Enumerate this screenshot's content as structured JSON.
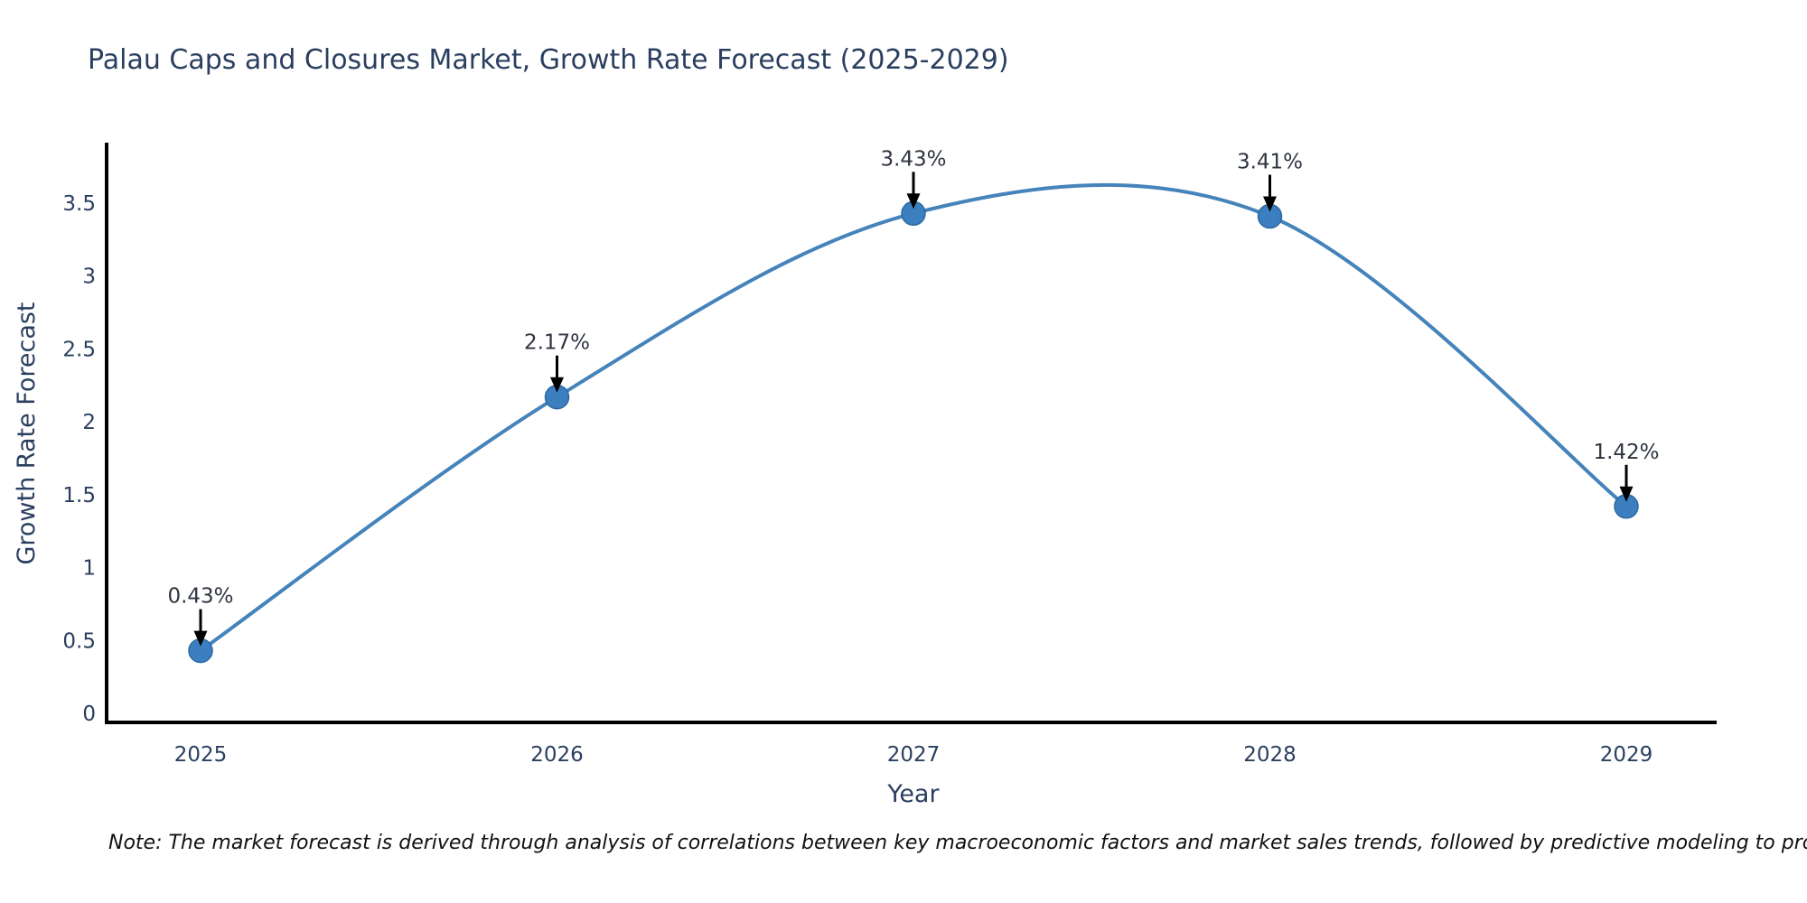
{
  "chart_data": {
    "type": "line",
    "title": "Palau Caps and Closures Market, Growth Rate Forecast (2025-2029)",
    "xlabel": "Year",
    "ylabel": "Growth Rate Forecast",
    "x": [
      2025,
      2026,
      2027,
      2028,
      2029
    ],
    "values": [
      0.43,
      2.17,
      3.43,
      3.41,
      1.42
    ],
    "point_labels": [
      "0.43%",
      "2.17%",
      "3.43%",
      "3.41%",
      "1.42%"
    ],
    "xticks": [
      "2025",
      "2026",
      "2027",
      "2028",
      "2029"
    ],
    "yticks": [
      0,
      0.5,
      1,
      1.5,
      2,
      2.5,
      3,
      3.5
    ],
    "ytick_labels": [
      "0",
      "0.5",
      "1",
      "1.5",
      "2",
      "2.5",
      "3",
      "3.5"
    ],
    "ylim": [
      0,
      3.5
    ],
    "grid": false,
    "legend": "none",
    "line_shape": "spline",
    "annotation_style": "label-with-down-arrow",
    "note": "Note: The market forecast is derived through analysis of correlations between key macroeconomic factors and market sales trends, followed by predictive modeling to project future sales",
    "colors": {
      "line": "#4583bb",
      "marker_fill": "#3c7fc0",
      "marker_edge": "#2d689f",
      "axis": "#000000",
      "arrow": "#000000",
      "title_text": "#2a3f5f",
      "tick_text": "#2a3f5f",
      "annotation_text": "#2e3440",
      "note_text": "#111111"
    }
  }
}
